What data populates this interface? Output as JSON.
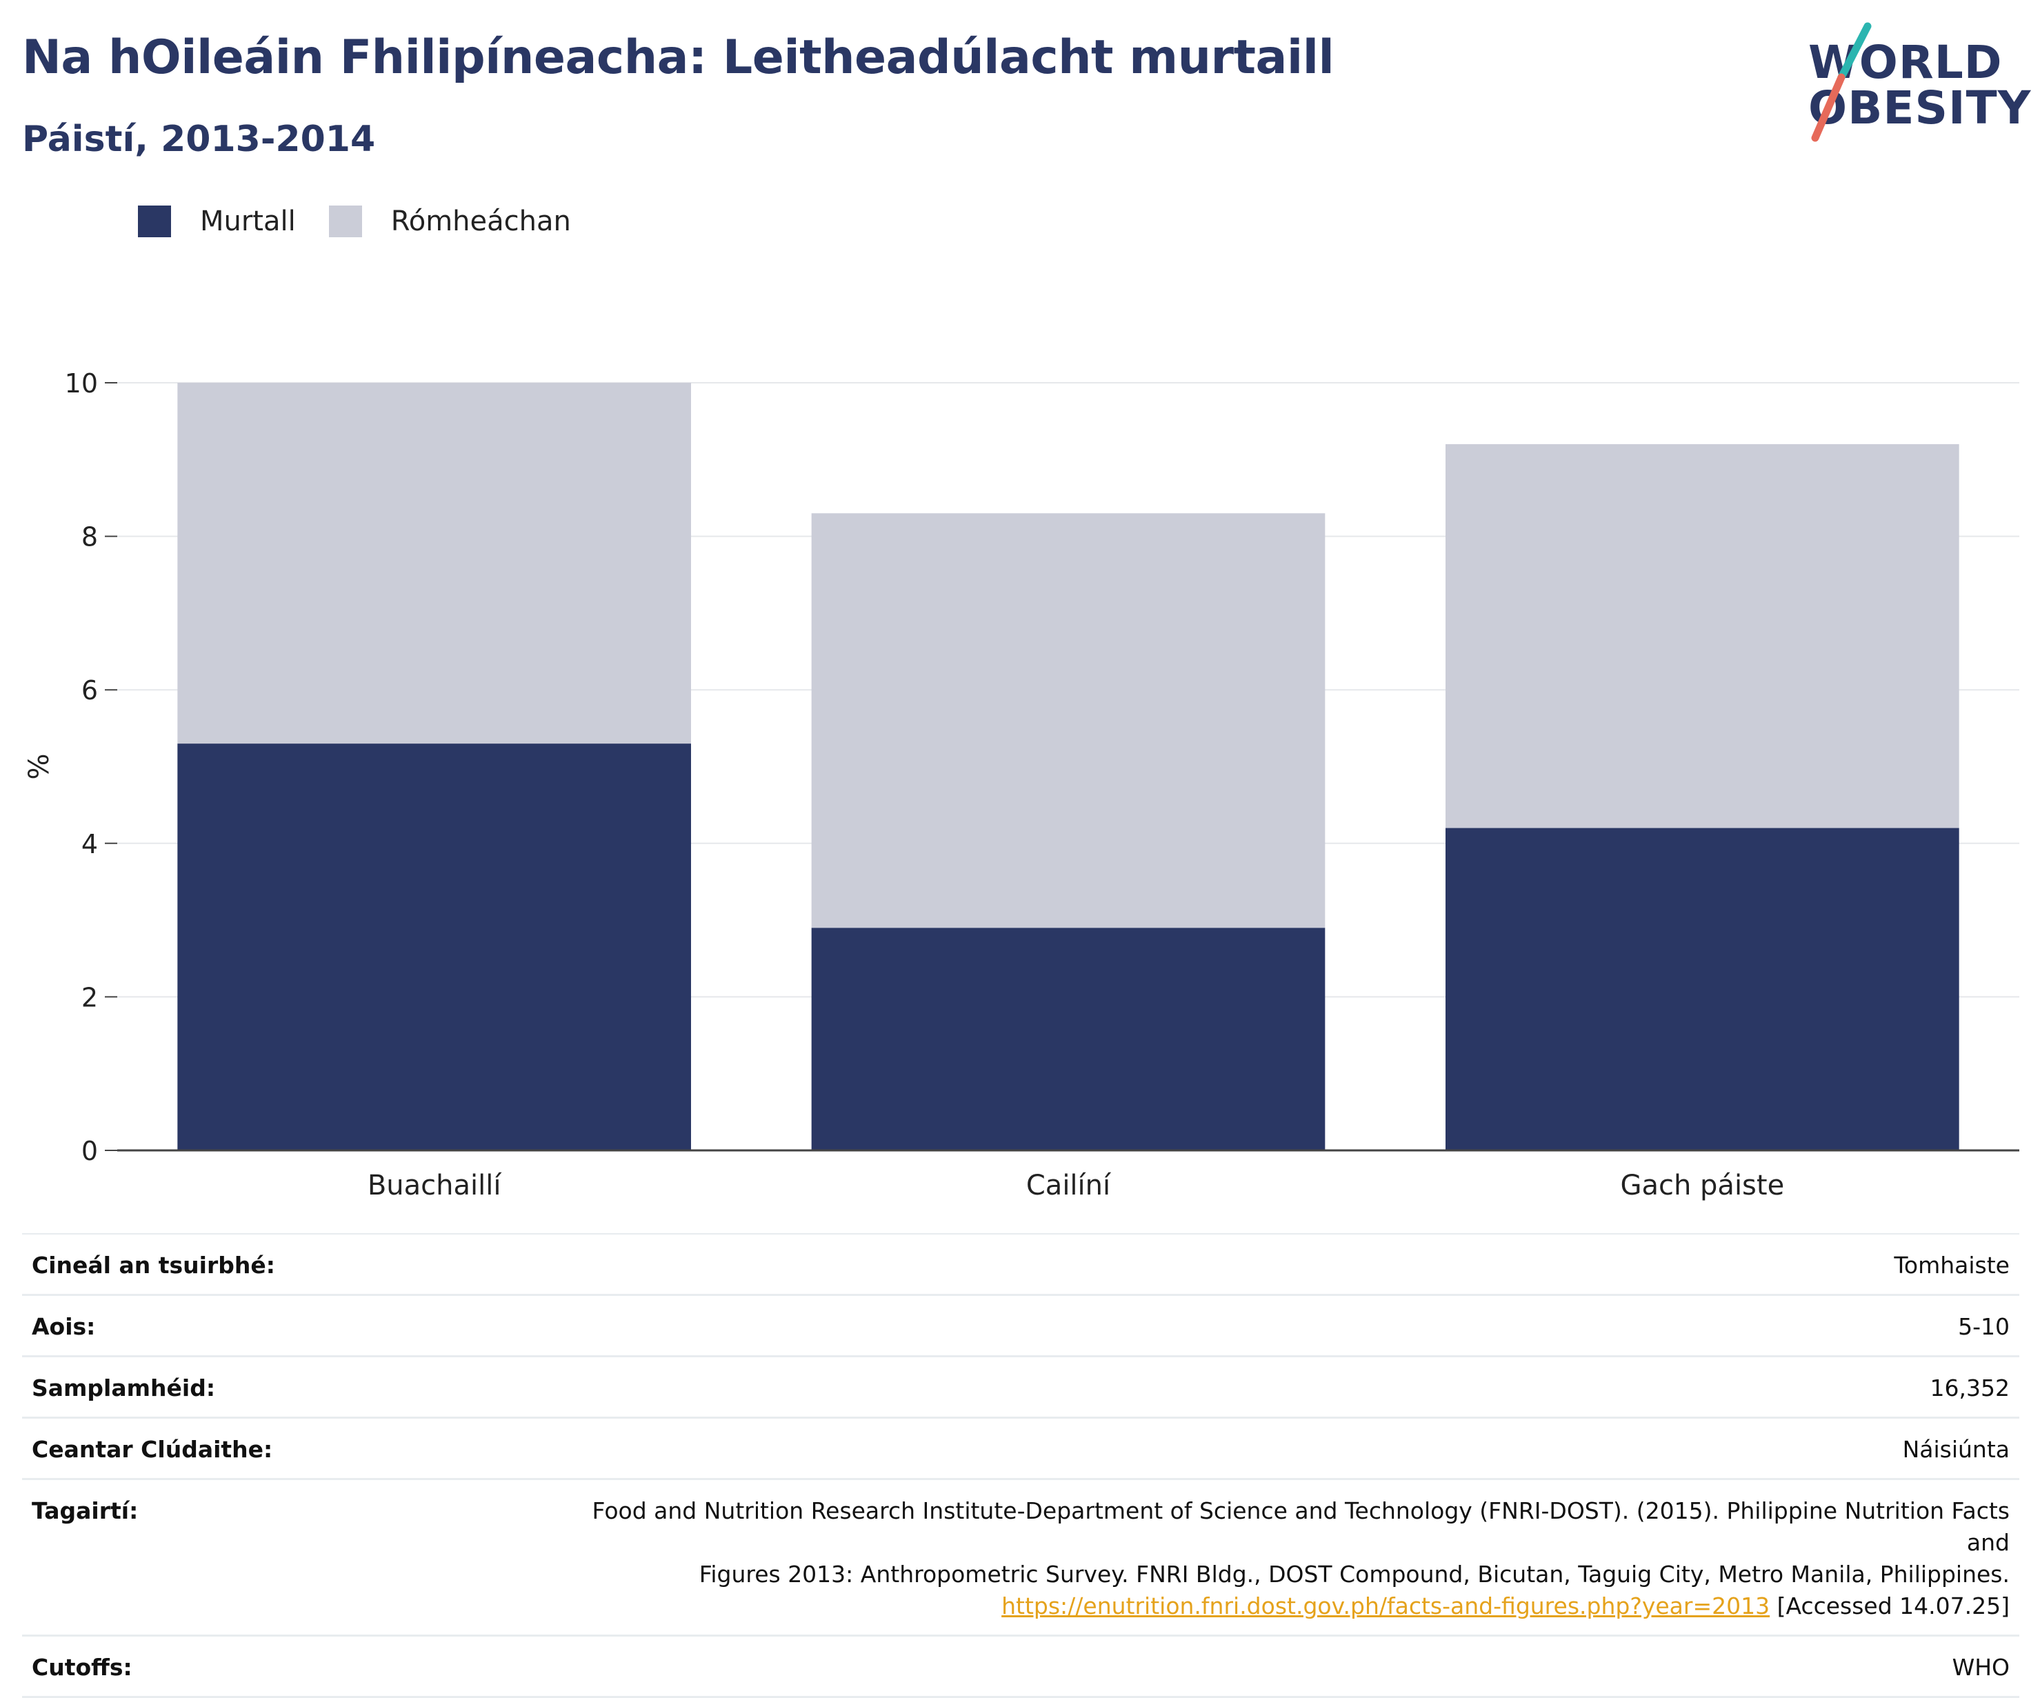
{
  "title": "Na hOileáin Fhilipíneacha: Leitheadúlacht murtaill",
  "subtitle": "Páistí, 2013-2014",
  "logo": {
    "line1": "WORLD",
    "line2": "OBESITY"
  },
  "colors": {
    "obese": "#2a3764",
    "overweight": "#cbcdd8",
    "title": "#2a3764",
    "logo_teal": "#2bb5b0",
    "logo_red": "#e66a5a",
    "link": "#e5a21b"
  },
  "legend": [
    {
      "label": "Murtall",
      "color": "#2a3764"
    },
    {
      "label": "Rómheáchan",
      "color": "#cbcdd8"
    }
  ],
  "chart_data": {
    "type": "bar",
    "stacked": true,
    "categories": [
      "Buachaillí",
      "Cailíní",
      "Gach páiste"
    ],
    "series": [
      {
        "name": "Murtall",
        "values": [
          5.3,
          2.9,
          4.2
        ]
      },
      {
        "name": "Rómheáchan",
        "values": [
          4.7,
          5.4,
          5.0
        ]
      }
    ],
    "ylabel": "%",
    "ylim": [
      0,
      10
    ],
    "yticks": [
      0,
      2,
      4,
      6,
      8,
      10
    ],
    "grid": true,
    "legend_position": "top-left"
  },
  "info": [
    {
      "key": "Cineál an tsuirbhé:",
      "value": "Tomhaiste"
    },
    {
      "key": "Aois:",
      "value": "5-10"
    },
    {
      "key": "Samplamhéid:",
      "value": "16,352"
    },
    {
      "key": "Ceantar Clúdaithe:",
      "value": "Náisiúnta"
    }
  ],
  "reference": {
    "key": "Tagairtí:",
    "line1": "Food and Nutrition Research Institute-Department of Science and Technology (FNRI-DOST). (2015). Philippine Nutrition Facts and",
    "line2": "Figures 2013: Anthropometric Survey. FNRI Bldg., DOST Compound, Bicutan, Taguig City, Metro Manila, Philippines.",
    "link": "https://enutrition.fnri.dost.gov.ph/facts-and-figures.php?year=2013",
    "accessed": " [Accessed 14.07.25]"
  },
  "cutoffs": {
    "key": "Cutoffs:",
    "value": "WHO"
  }
}
